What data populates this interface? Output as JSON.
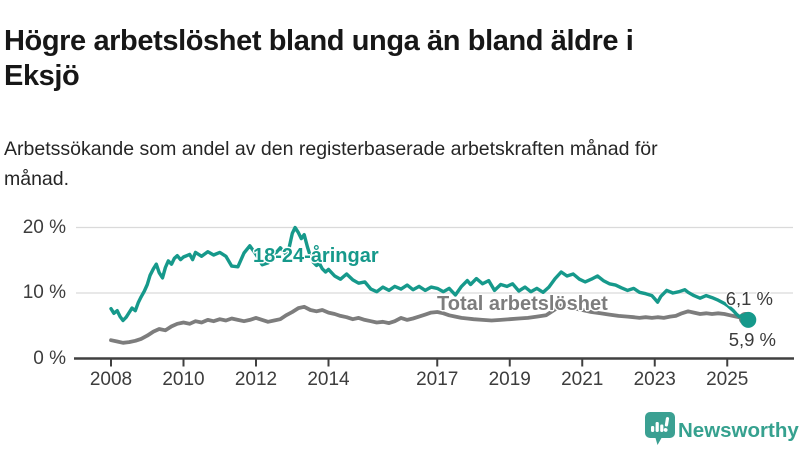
{
  "header": {
    "title_line1": "Högre arbetslöshet bland unga än bland äldre i",
    "title_line2": "Eksjö",
    "subtitle": "Arbetssökande som andel av den registerbaserade arbetskraften månad för månad."
  },
  "footer": {
    "brand_name": "Newsworthy",
    "logo_icon": "newsworthy-speech-bubble-bar-chart-icon"
  },
  "colors": {
    "young_series": "#16998b",
    "total_series": "#7d7d7d",
    "grid": "#dadada",
    "axis": "#404040",
    "tick_text": "#3d3d3d",
    "end_label_text": "#3b3b3b",
    "brand_teal": "#3ba092"
  },
  "chart_data": {
    "type": "line",
    "unit": "%",
    "frequency": "monthly",
    "grid": "horizontal",
    "ylim": [
      0,
      21.8
    ],
    "xlim_years": [
      2007.0,
      2026.8
    ],
    "y_axis": {
      "ticks": [
        0,
        10,
        20
      ],
      "tick_labels": [
        "0 %",
        "10 %",
        "20 %"
      ]
    },
    "x_axis": {
      "ticks": [
        2008,
        2010,
        2012,
        2014,
        2017,
        2019,
        2021,
        2023,
        2025
      ],
      "tick_labels": [
        "2008",
        "2010",
        "2012",
        "2014",
        "2017",
        "2019",
        "2021",
        "2023",
        "2025"
      ]
    },
    "series": [
      {
        "name": "18-24-åringar",
        "color": "#16998b",
        "end_value": 5.9,
        "end_value_label": "5,9 %",
        "points": [
          [
            2008.0,
            7.6
          ],
          [
            2008.08,
            6.9
          ],
          [
            2008.17,
            7.3
          ],
          [
            2008.25,
            6.4
          ],
          [
            2008.33,
            5.8
          ],
          [
            2008.42,
            6.3
          ],
          [
            2008.5,
            7.0
          ],
          [
            2008.58,
            7.7
          ],
          [
            2008.67,
            7.3
          ],
          [
            2008.75,
            8.5
          ],
          [
            2008.83,
            9.4
          ],
          [
            2008.92,
            10.3
          ],
          [
            2009.0,
            11.3
          ],
          [
            2009.08,
            12.7
          ],
          [
            2009.17,
            13.7
          ],
          [
            2009.25,
            14.4
          ],
          [
            2009.33,
            13.1
          ],
          [
            2009.42,
            12.3
          ],
          [
            2009.5,
            13.9
          ],
          [
            2009.58,
            14.9
          ],
          [
            2009.67,
            14.4
          ],
          [
            2009.75,
            15.3
          ],
          [
            2009.83,
            15.7
          ],
          [
            2009.92,
            15.1
          ],
          [
            2010.0,
            15.5
          ],
          [
            2010.17,
            15.9
          ],
          [
            2010.25,
            15.1
          ],
          [
            2010.33,
            16.2
          ],
          [
            2010.5,
            15.6
          ],
          [
            2010.67,
            16.3
          ],
          [
            2010.83,
            15.8
          ],
          [
            2011.0,
            16.2
          ],
          [
            2011.17,
            15.6
          ],
          [
            2011.33,
            14.1
          ],
          [
            2011.5,
            14.0
          ],
          [
            2011.67,
            16.1
          ],
          [
            2011.83,
            17.2
          ],
          [
            2012.0,
            15.9
          ],
          [
            2012.17,
            14.3
          ],
          [
            2012.33,
            14.6
          ],
          [
            2012.5,
            15.8
          ],
          [
            2012.67,
            16.9
          ],
          [
            2012.83,
            15.9
          ],
          [
            2012.92,
            17.1
          ],
          [
            2013.0,
            19.1
          ],
          [
            2013.08,
            20.0
          ],
          [
            2013.17,
            19.2
          ],
          [
            2013.25,
            18.3
          ],
          [
            2013.33,
            18.9
          ],
          [
            2013.42,
            17.0
          ],
          [
            2013.5,
            15.6
          ],
          [
            2013.58,
            14.7
          ],
          [
            2013.67,
            14.2
          ],
          [
            2013.75,
            14.5
          ],
          [
            2013.83,
            13.7
          ],
          [
            2013.92,
            13.2
          ],
          [
            2014.0,
            13.6
          ],
          [
            2014.17,
            12.6
          ],
          [
            2014.33,
            12.1
          ],
          [
            2014.5,
            12.9
          ],
          [
            2014.67,
            12.0
          ],
          [
            2014.83,
            11.5
          ],
          [
            2015.0,
            11.7
          ],
          [
            2015.17,
            10.6
          ],
          [
            2015.33,
            10.2
          ],
          [
            2015.5,
            10.9
          ],
          [
            2015.67,
            10.4
          ],
          [
            2015.83,
            11.0
          ],
          [
            2016.0,
            10.6
          ],
          [
            2016.17,
            11.2
          ],
          [
            2016.33,
            10.5
          ],
          [
            2016.5,
            11.0
          ],
          [
            2016.67,
            10.4
          ],
          [
            2016.83,
            10.9
          ],
          [
            2017.0,
            10.7
          ],
          [
            2017.17,
            10.2
          ],
          [
            2017.33,
            10.7
          ],
          [
            2017.5,
            9.7
          ],
          [
            2017.67,
            11.0
          ],
          [
            2017.83,
            11.9
          ],
          [
            2017.92,
            11.3
          ],
          [
            2018.08,
            12.2
          ],
          [
            2018.25,
            11.4
          ],
          [
            2018.42,
            11.9
          ],
          [
            2018.58,
            10.4
          ],
          [
            2018.75,
            11.3
          ],
          [
            2018.92,
            11.0
          ],
          [
            2019.08,
            11.4
          ],
          [
            2019.25,
            10.3
          ],
          [
            2019.42,
            10.9
          ],
          [
            2019.58,
            10.2
          ],
          [
            2019.75,
            10.7
          ],
          [
            2019.92,
            10.1
          ],
          [
            2020.08,
            10.9
          ],
          [
            2020.25,
            12.2
          ],
          [
            2020.42,
            13.2
          ],
          [
            2020.58,
            12.6
          ],
          [
            2020.75,
            12.9
          ],
          [
            2020.92,
            12.1
          ],
          [
            2021.08,
            11.7
          ],
          [
            2021.25,
            12.1
          ],
          [
            2021.42,
            12.6
          ],
          [
            2021.58,
            11.9
          ],
          [
            2021.75,
            11.4
          ],
          [
            2021.92,
            11.2
          ],
          [
            2022.08,
            10.8
          ],
          [
            2022.25,
            10.4
          ],
          [
            2022.42,
            10.7
          ],
          [
            2022.58,
            10.1
          ],
          [
            2022.75,
            9.9
          ],
          [
            2022.92,
            9.6
          ],
          [
            2023.0,
            9.1
          ],
          [
            2023.08,
            8.6
          ],
          [
            2023.17,
            9.5
          ],
          [
            2023.33,
            10.4
          ],
          [
            2023.5,
            10.0
          ],
          [
            2023.67,
            10.2
          ],
          [
            2023.83,
            10.5
          ],
          [
            2023.92,
            10.1
          ],
          [
            2024.08,
            9.6
          ],
          [
            2024.25,
            9.2
          ],
          [
            2024.42,
            9.6
          ],
          [
            2024.58,
            9.3
          ],
          [
            2024.75,
            8.9
          ],
          [
            2024.92,
            8.4
          ],
          [
            2025.0,
            8.1
          ],
          [
            2025.17,
            7.3
          ],
          [
            2025.25,
            6.8
          ],
          [
            2025.33,
            6.4
          ],
          [
            2025.42,
            6.6
          ],
          [
            2025.58,
            5.9
          ]
        ]
      },
      {
        "name": "Total arbetslöshet",
        "color": "#7d7d7d",
        "end_value": 6.1,
        "end_value_label": "6,1 %",
        "points": [
          [
            2008.0,
            2.8
          ],
          [
            2008.17,
            2.6
          ],
          [
            2008.33,
            2.4
          ],
          [
            2008.5,
            2.5
          ],
          [
            2008.67,
            2.7
          ],
          [
            2008.83,
            3.0
          ],
          [
            2009.0,
            3.5
          ],
          [
            2009.17,
            4.1
          ],
          [
            2009.33,
            4.5
          ],
          [
            2009.5,
            4.3
          ],
          [
            2009.67,
            4.9
          ],
          [
            2009.83,
            5.3
          ],
          [
            2010.0,
            5.5
          ],
          [
            2010.17,
            5.3
          ],
          [
            2010.33,
            5.7
          ],
          [
            2010.5,
            5.5
          ],
          [
            2010.67,
            5.9
          ],
          [
            2010.83,
            5.7
          ],
          [
            2011.0,
            6.0
          ],
          [
            2011.17,
            5.8
          ],
          [
            2011.33,
            6.1
          ],
          [
            2011.5,
            5.9
          ],
          [
            2011.67,
            5.7
          ],
          [
            2011.83,
            5.9
          ],
          [
            2012.0,
            6.2
          ],
          [
            2012.17,
            5.9
          ],
          [
            2012.33,
            5.6
          ],
          [
            2012.5,
            5.8
          ],
          [
            2012.67,
            6.0
          ],
          [
            2012.83,
            6.6
          ],
          [
            2013.0,
            7.1
          ],
          [
            2013.17,
            7.7
          ],
          [
            2013.33,
            7.9
          ],
          [
            2013.5,
            7.4
          ],
          [
            2013.67,
            7.2
          ],
          [
            2013.83,
            7.4
          ],
          [
            2014.0,
            7.0
          ],
          [
            2014.17,
            6.8
          ],
          [
            2014.33,
            6.5
          ],
          [
            2014.5,
            6.3
          ],
          [
            2014.67,
            6.0
          ],
          [
            2014.83,
            6.2
          ],
          [
            2015.0,
            5.9
          ],
          [
            2015.17,
            5.7
          ],
          [
            2015.33,
            5.5
          ],
          [
            2015.5,
            5.6
          ],
          [
            2015.67,
            5.4
          ],
          [
            2015.83,
            5.7
          ],
          [
            2016.0,
            6.2
          ],
          [
            2016.17,
            5.9
          ],
          [
            2016.33,
            6.1
          ],
          [
            2016.5,
            6.4
          ],
          [
            2016.67,
            6.7
          ],
          [
            2016.83,
            7.0
          ],
          [
            2017.0,
            7.1
          ],
          [
            2017.17,
            6.9
          ],
          [
            2017.33,
            6.6
          ],
          [
            2017.5,
            6.4
          ],
          [
            2017.67,
            6.2
          ],
          [
            2017.83,
            6.1
          ],
          [
            2018.0,
            6.0
          ],
          [
            2018.25,
            5.9
          ],
          [
            2018.5,
            5.8
          ],
          [
            2018.75,
            5.9
          ],
          [
            2019.0,
            6.0
          ],
          [
            2019.25,
            6.1
          ],
          [
            2019.5,
            6.2
          ],
          [
            2019.75,
            6.4
          ],
          [
            2020.0,
            6.6
          ],
          [
            2020.25,
            7.5
          ],
          [
            2020.42,
            8.1
          ],
          [
            2020.58,
            7.9
          ],
          [
            2020.75,
            7.7
          ],
          [
            2021.0,
            7.4
          ],
          [
            2021.25,
            7.1
          ],
          [
            2021.5,
            6.9
          ],
          [
            2021.75,
            6.7
          ],
          [
            2022.0,
            6.5
          ],
          [
            2022.25,
            6.4
          ],
          [
            2022.42,
            6.3
          ],
          [
            2022.58,
            6.2
          ],
          [
            2022.75,
            6.3
          ],
          [
            2022.92,
            6.2
          ],
          [
            2023.08,
            6.3
          ],
          [
            2023.25,
            6.2
          ],
          [
            2023.42,
            6.4
          ],
          [
            2023.58,
            6.5
          ],
          [
            2023.75,
            6.9
          ],
          [
            2023.92,
            7.2
          ],
          [
            2024.08,
            7.0
          ],
          [
            2024.25,
            6.8
          ],
          [
            2024.42,
            6.9
          ],
          [
            2024.58,
            6.8
          ],
          [
            2024.75,
            6.9
          ],
          [
            2024.92,
            6.8
          ],
          [
            2025.08,
            6.6
          ],
          [
            2025.25,
            6.4
          ],
          [
            2025.42,
            6.2
          ],
          [
            2025.5,
            6.1
          ]
        ]
      }
    ]
  }
}
